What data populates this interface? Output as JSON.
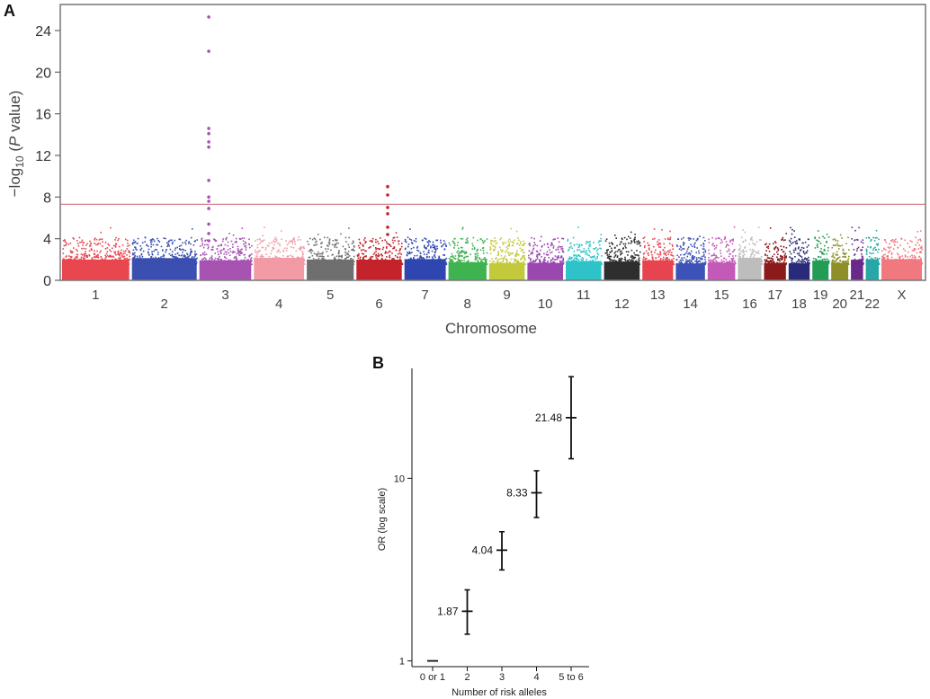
{
  "chart_data": [
    {
      "type": "scatter",
      "subtype": "manhattan",
      "panel_label": "A",
      "xlabel": "Chromosome",
      "ylabel_prefix": "−log",
      "ylabel_sub": "10",
      "ylabel_open": " (",
      "ylabel_italic": "P",
      "ylabel_suffix": " value)",
      "ylim": [
        0,
        26.5
      ],
      "yticks": [
        0,
        4,
        8,
        12,
        16,
        20,
        24
      ],
      "significance_threshold": 7.3,
      "threshold_color": "#d97a8a",
      "chromosomes": [
        {
          "label": "1",
          "rel_size": 8.3,
          "color": "#e8474f"
        },
        {
          "label": "2",
          "rel_size": 8.0,
          "color": "#3b4fb0"
        },
        {
          "label": "3",
          "rel_size": 6.4,
          "color": "#a653b2"
        },
        {
          "label": "4",
          "rel_size": 6.2,
          "color": "#f29aa5"
        },
        {
          "label": "5",
          "rel_size": 5.8,
          "color": "#6f6f6f"
        },
        {
          "label": "6",
          "rel_size": 5.6,
          "color": "#c4232b"
        },
        {
          "label": "7",
          "rel_size": 5.1,
          "color": "#2f46b0"
        },
        {
          "label": "8",
          "rel_size": 4.7,
          "color": "#3fb34f"
        },
        {
          "label": "9",
          "rel_size": 4.4,
          "color": "#c2c93a"
        },
        {
          "label": "10",
          "rel_size": 4.4,
          "color": "#9a47b0"
        },
        {
          "label": "11",
          "rel_size": 4.4,
          "color": "#2ec3c9"
        },
        {
          "label": "12",
          "rel_size": 4.4,
          "color": "#2e2e2e"
        },
        {
          "label": "13",
          "rel_size": 3.8,
          "color": "#e8444f"
        },
        {
          "label": "14",
          "rel_size": 3.6,
          "color": "#3d52b6"
        },
        {
          "label": "15",
          "rel_size": 3.4,
          "color": "#c45ab8"
        },
        {
          "label": "16",
          "rel_size": 2.9,
          "color": "#bdbdbd"
        },
        {
          "label": "17",
          "rel_size": 2.7,
          "color": "#8b1a1a"
        },
        {
          "label": "18",
          "rel_size": 2.6,
          "color": "#2a2a7a"
        },
        {
          "label": "19",
          "rel_size": 2.0,
          "color": "#239d55"
        },
        {
          "label": "20",
          "rel_size": 2.1,
          "color": "#8e8e2a"
        },
        {
          "label": "21",
          "rel_size": 1.5,
          "color": "#6a2a8a"
        },
        {
          "label": "22",
          "rel_size": 1.6,
          "color": "#27a7a7"
        },
        {
          "label": "X",
          "rel_size": 5.0,
          "color": "#f0787f"
        }
      ],
      "highlighted_points": [
        {
          "chromosome": "3",
          "pos": 0.18,
          "y": 25.3
        },
        {
          "chromosome": "3",
          "pos": 0.18,
          "y": 22.0
        },
        {
          "chromosome": "3",
          "pos": 0.18,
          "y": 14.6
        },
        {
          "chromosome": "3",
          "pos": 0.18,
          "y": 14.1
        },
        {
          "chromosome": "3",
          "pos": 0.18,
          "y": 13.3
        },
        {
          "chromosome": "3",
          "pos": 0.18,
          "y": 12.8
        },
        {
          "chromosome": "3",
          "pos": 0.18,
          "y": 9.6
        },
        {
          "chromosome": "3",
          "pos": 0.18,
          "y": 8.0
        },
        {
          "chromosome": "3",
          "pos": 0.18,
          "y": 7.6
        },
        {
          "chromosome": "3",
          "pos": 0.18,
          "y": 6.9
        },
        {
          "chromosome": "3",
          "pos": 0.18,
          "y": 5.4
        },
        {
          "chromosome": "3",
          "pos": 0.18,
          "y": 4.5
        },
        {
          "chromosome": "3",
          "pos": 0.18,
          "y": 3.8
        },
        {
          "chromosome": "6",
          "pos": 0.69,
          "y": 9.0
        },
        {
          "chromosome": "6",
          "pos": 0.69,
          "y": 8.2
        },
        {
          "chromosome": "6",
          "pos": 0.69,
          "y": 7.0
        },
        {
          "chromosome": "6",
          "pos": 0.69,
          "y": 6.4
        },
        {
          "chromosome": "6",
          "pos": 0.69,
          "y": 5.1
        },
        {
          "chromosome": "6",
          "pos": 0.69,
          "y": 4.4
        }
      ]
    },
    {
      "type": "errorbar",
      "panel_label": "B",
      "xlabel": "Number of risk alleles",
      "ylabel": "OR (log scale)",
      "yscale": "log",
      "ylim": [
        0.93,
        40
      ],
      "yticks": [
        1,
        10
      ],
      "categories": [
        "0 or 1",
        "2",
        "3",
        "4",
        "5 to 6"
      ],
      "values": [
        1,
        1.87,
        4.04,
        8.33,
        21.48
      ],
      "value_labels": [
        "",
        "1.87",
        "4.04",
        "8.33",
        "21.48"
      ],
      "ci_low": [
        1,
        1.4,
        3.15,
        6.1,
        12.8
      ],
      "ci_high": [
        1,
        2.45,
        5.1,
        11.0,
        36.0
      ]
    }
  ]
}
